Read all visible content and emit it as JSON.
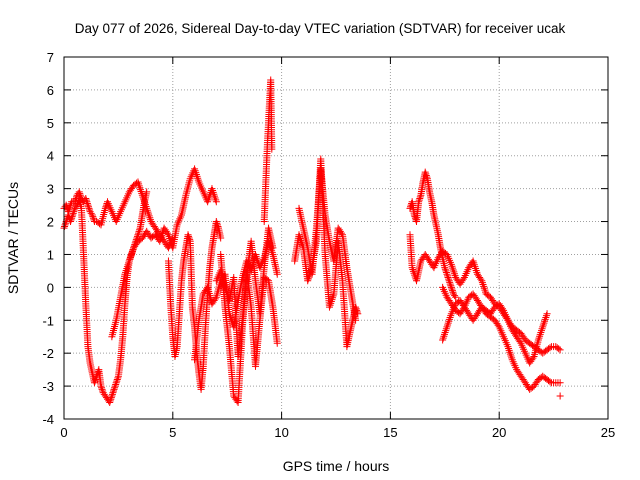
{
  "chart_data": {
    "type": "scatter",
    "title": "Day 077 of 2026, Sidereal Day-to-day VTEC variation (SDTVAR) for receiver ucak",
    "xlabel": "GPS time / hours",
    "ylabel": "SDTVAR / TECUs",
    "xlim": [
      0,
      25
    ],
    "ylim": [
      -4,
      7
    ],
    "x_ticks": [
      0,
      5,
      10,
      15,
      20,
      25
    ],
    "y_ticks": [
      -4,
      -3,
      -2,
      -1,
      0,
      1,
      2,
      3,
      4,
      5,
      6,
      7
    ],
    "grid": true,
    "marker": "+",
    "color": "#ff0000",
    "series": [
      {
        "name": "SDTVAR",
        "segments": [
          {
            "x": [
              0.0,
              0.1,
              0.2,
              0.35,
              0.5,
              0.6,
              0.7,
              0.8,
              0.9,
              1.0,
              1.1,
              1.2,
              1.3,
              1.4,
              1.5,
              1.7,
              1.9,
              2.0,
              2.2,
              2.4,
              2.6,
              2.8,
              3.0,
              3.2,
              3.4,
              3.6,
              3.8,
              4.0,
              4.2,
              4.4,
              4.6,
              4.8,
              5.0
            ],
            "y": [
              2.4,
              2.5,
              2.3,
              2.6,
              2.6,
              2.8,
              2.9,
              2.7,
              2.6,
              2.7,
              2.5,
              2.3,
              2.2,
              2.0,
              2.0,
              1.9,
              2.4,
              2.6,
              2.3,
              2.0,
              2.3,
              2.6,
              2.9,
              3.1,
              3.2,
              2.8,
              2.4,
              2.0,
              1.8,
              1.6,
              1.4,
              1.2,
              1.5
            ]
          },
          {
            "x": [
              0.0,
              0.1,
              0.2,
              0.3,
              0.4,
              0.5,
              0.6,
              0.7,
              0.8,
              0.9,
              1.0,
              1.1,
              1.2,
              1.3,
              1.4,
              1.5,
              1.6,
              1.7,
              1.8,
              1.9,
              2.0,
              2.1,
              2.2,
              2.3,
              2.4,
              2.5,
              2.6,
              2.7,
              2.8,
              2.9,
              3.0,
              3.1,
              3.2,
              3.3,
              3.4,
              3.5,
              3.6,
              3.7,
              3.8
            ],
            "y": [
              1.8,
              2.0,
              2.2,
              2.0,
              2.2,
              2.4,
              2.5,
              2.7,
              2.4,
              1.0,
              -0.5,
              -1.8,
              -2.3,
              -2.6,
              -2.9,
              -2.7,
              -2.5,
              -3.0,
              -3.2,
              -3.3,
              -3.4,
              -3.5,
              -3.3,
              -3.1,
              -2.9,
              -2.7,
              -2.2,
              -1.5,
              -0.5,
              0.3,
              0.8,
              1.0,
              1.2,
              1.4,
              1.6,
              1.8,
              2.2,
              2.6,
              2.9
            ]
          },
          {
            "x": [
              2.2,
              2.4,
              2.6,
              2.8,
              3.0,
              3.2,
              3.4,
              3.6,
              3.8,
              4.0,
              4.2,
              4.4,
              4.6,
              4.8,
              5.0,
              5.2,
              5.4,
              5.6,
              5.8,
              6.0,
              6.2,
              6.4,
              6.6,
              6.8,
              7.0
            ],
            "y": [
              -1.5,
              -1.0,
              -0.3,
              0.4,
              0.8,
              1.2,
              1.4,
              1.5,
              1.7,
              1.5,
              1.6,
              1.4,
              1.8,
              1.6,
              1.2,
              1.9,
              2.2,
              2.8,
              3.3,
              3.6,
              3.2,
              2.9,
              2.6,
              3.0,
              2.6
            ]
          },
          {
            "x": [
              4.8,
              4.9,
              5.0,
              5.1,
              5.2,
              5.3,
              5.4,
              5.5,
              5.6,
              5.7,
              5.8,
              5.9,
              6.0,
              6.1,
              6.2,
              6.3,
              6.4,
              6.5,
              6.6,
              6.7,
              6.8,
              6.9,
              7.0,
              7.1,
              7.2
            ],
            "y": [
              0.8,
              -0.5,
              -1.5,
              -2.1,
              -1.8,
              -0.8,
              0.2,
              0.8,
              1.2,
              1.6,
              1.4,
              -0.6,
              -1.2,
              -2.0,
              -2.6,
              -3.1,
              -2.4,
              -1.2,
              -0.2,
              0.6,
              1.2,
              1.6,
              2.0,
              1.8,
              1.5
            ]
          },
          {
            "x": [
              6.0,
              6.2,
              6.4,
              6.6,
              6.8,
              7.0,
              7.2,
              7.4,
              7.6,
              7.8,
              8.0,
              8.2,
              8.4,
              8.6,
              8.8,
              9.0,
              9.2,
              9.4,
              9.6,
              9.8
            ],
            "y": [
              -2.2,
              -1.0,
              -0.2,
              0.0,
              -0.5,
              -0.3,
              0.2,
              0.4,
              -0.8,
              -1.2,
              -0.4,
              0.3,
              0.8,
              0.5,
              1.0,
              0.6,
              0.9,
              1.4,
              1.0,
              0.4
            ]
          },
          {
            "x": [
              7.2,
              7.4,
              7.6,
              7.8,
              8.0,
              8.2,
              8.4,
              8.6,
              8.8,
              9.0,
              9.2,
              9.4,
              9.6
            ],
            "y": [
              1.0,
              -0.6,
              -1.8,
              -3.3,
              -3.5,
              -1.2,
              0.4,
              1.4,
              0.2,
              -0.8,
              0.6,
              1.8,
              1.2
            ]
          },
          {
            "x": [
              7.0,
              7.2,
              7.4,
              7.6,
              7.8,
              8.0,
              8.2,
              8.4,
              8.6,
              8.8,
              9.0,
              9.2,
              9.4,
              9.6,
              9.8
            ],
            "y": [
              0.2,
              0.5,
              0.0,
              -0.4,
              0.3,
              -2.1,
              -1.0,
              0.5,
              -0.6,
              -2.4,
              -1.0,
              0.3,
              0.2,
              -0.6,
              -1.7
            ]
          },
          {
            "x": [
              9.2,
              9.25,
              9.3,
              9.35,
              9.4,
              9.45,
              9.5,
              9.55
            ],
            "y": [
              2.0,
              2.8,
              3.6,
              4.4,
              5.0,
              5.7,
              6.3,
              4.2
            ]
          },
          {
            "x": [
              10.8,
              11.0,
              11.2,
              11.4,
              11.6,
              11.8,
              12.0,
              12.2,
              12.4,
              12.6,
              12.8,
              13.0,
              13.2,
              13.4
            ],
            "y": [
              2.4,
              1.8,
              1.2,
              0.4,
              1.8,
              3.6,
              2.2,
              1.4,
              0.8,
              1.8,
              1.6,
              0.6,
              -0.2,
              -1.0
            ]
          },
          {
            "x": [
              10.6,
              10.8,
              11.0,
              11.2,
              11.4,
              11.6,
              11.8,
              12.0,
              12.2,
              12.4,
              12.6,
              12.8,
              13.0,
              13.2,
              13.4,
              13.5
            ],
            "y": [
              0.8,
              1.6,
              1.2,
              0.2,
              0.6,
              1.4,
              3.9,
              1.0,
              -0.6,
              -0.2,
              1.4,
              0.2,
              -1.8,
              -1.2,
              -0.6,
              -0.8
            ]
          },
          {
            "x": [
              15.9,
              16.0,
              16.1,
              16.2,
              16.3,
              16.4,
              16.5,
              16.6,
              16.7,
              16.8,
              16.9,
              17.0,
              17.1,
              17.2,
              17.3,
              17.4,
              17.5,
              17.6,
              17.7,
              17.8,
              17.9,
              18.0
            ],
            "y": [
              2.4,
              2.6,
              2.2,
              2.0,
              2.6,
              2.8,
              3.2,
              3.5,
              3.3,
              2.9,
              2.6,
              2.2,
              1.9,
              1.6,
              1.2,
              0.9,
              0.6,
              0.4,
              0.2,
              0.0,
              -0.2,
              -0.3
            ]
          },
          {
            "x": [
              15.9,
              16.0,
              16.2,
              16.4,
              16.6,
              16.8,
              17.0,
              17.2,
              17.4,
              17.6,
              17.8,
              18.0,
              18.2,
              18.4,
              18.6,
              18.8,
              19.0,
              19.2,
              19.4,
              19.6,
              19.8,
              20.0,
              20.2,
              20.4,
              20.6,
              20.8,
              21.0,
              21.2,
              21.4,
              21.6,
              21.8,
              22.0,
              22.2,
              22.4,
              22.6,
              22.8
            ],
            "y": [
              1.6,
              0.6,
              0.2,
              0.8,
              1.0,
              0.8,
              0.6,
              0.9,
              1.1,
              1.0,
              0.7,
              0.3,
              0.1,
              0.3,
              0.6,
              0.8,
              0.4,
              0.2,
              -0.2,
              -0.3,
              -0.5,
              -0.6,
              -0.8,
              -1.0,
              -1.2,
              -1.3,
              -1.4,
              -1.6,
              -1.7,
              -1.8,
              -1.9,
              -2.0,
              -1.9,
              -1.8,
              -1.8,
              -1.9
            ]
          },
          {
            "x": [
              17.4,
              17.6,
              17.8,
              18.0,
              18.2,
              18.4,
              18.6,
              18.8,
              19.0,
              19.2,
              19.4,
              19.6,
              19.8,
              20.0,
              20.2,
              20.4,
              20.6,
              20.8,
              21.0,
              21.2,
              21.4,
              21.6,
              21.8,
              22.0,
              22.2,
              22.4,
              22.6,
              22.8
            ],
            "y": [
              0.0,
              -0.3,
              -0.5,
              -0.7,
              -0.8,
              -0.6,
              -0.3,
              -0.2,
              -0.4,
              -0.6,
              -0.8,
              -0.9,
              -1.0,
              -1.2,
              -1.5,
              -1.8,
              -2.2,
              -2.5,
              -2.7,
              -2.9,
              -3.1,
              -3.0,
              -2.8,
              -2.7,
              -2.8,
              -2.9,
              -2.9,
              -2.9
            ]
          },
          {
            "x": [
              17.4,
              17.6,
              17.8,
              18.0,
              18.2,
              18.4,
              18.6,
              18.8,
              19.0,
              19.2,
              19.4,
              19.6,
              19.8,
              20.0,
              20.2,
              20.4,
              20.6,
              20.8,
              21.0,
              21.2,
              21.4,
              21.6,
              21.8,
              22.0,
              22.2
            ],
            "y": [
              -1.6,
              -1.2,
              -0.8,
              -0.5,
              -0.4,
              -0.6,
              -0.8,
              -1.0,
              -0.8,
              -0.6,
              -0.7,
              -0.8,
              -0.6,
              -0.5,
              -0.7,
              -1.0,
              -1.3,
              -1.5,
              -1.7,
              -2.0,
              -2.3,
              -2.1,
              -1.6,
              -1.2,
              -0.8
            ]
          },
          {
            "x": [
              22.8
            ],
            "y": [
              -3.3
            ]
          }
        ]
      }
    ]
  }
}
